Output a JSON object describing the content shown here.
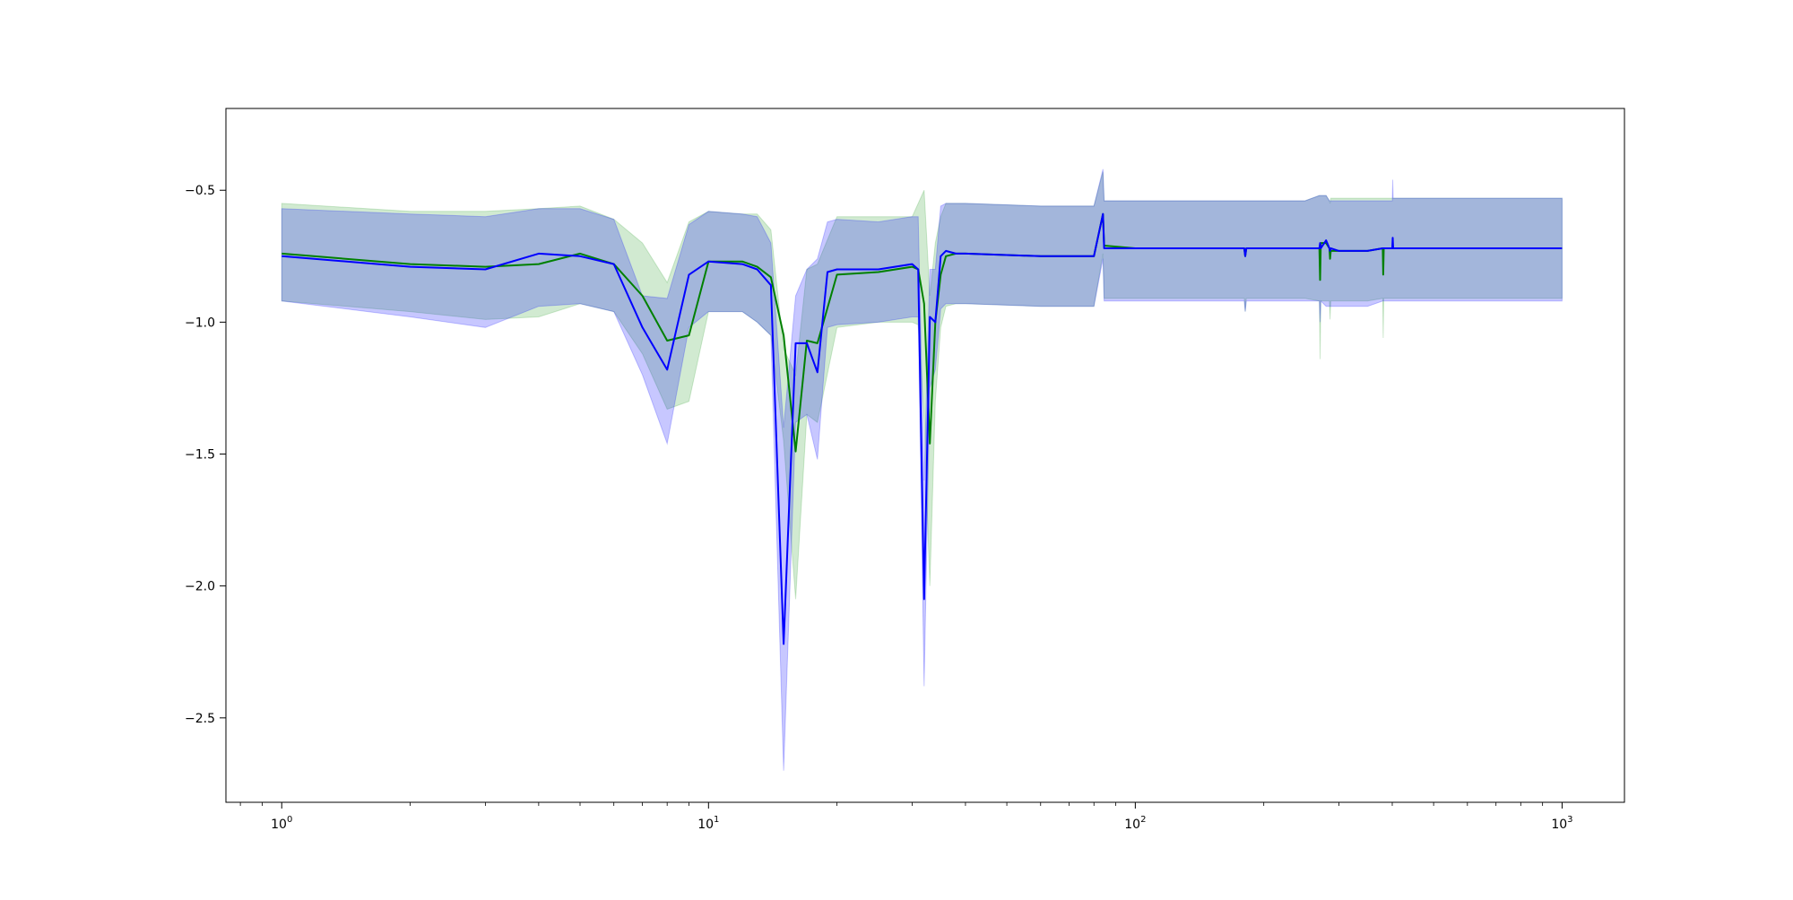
{
  "chart_data": {
    "type": "line",
    "title": "",
    "xlabel": "",
    "ylabel": "",
    "xscale": "log",
    "xlim": [
      0.74,
      1400
    ],
    "ylim": [
      -2.82,
      -0.19
    ],
    "grid": false,
    "x_ticks": [
      1,
      10,
      100,
      1000
    ],
    "x_tick_labels": [
      {
        "base": "10",
        "exp": "0"
      },
      {
        "base": "10",
        "exp": "1"
      },
      {
        "base": "10",
        "exp": "2"
      },
      {
        "base": "10",
        "exp": "3"
      }
    ],
    "y_ticks": [
      -0.5,
      -1.0,
      -1.5,
      -2.0,
      -2.5
    ],
    "y_tick_labels": [
      "−0.5",
      "−1.0",
      "−1.5",
      "−2.0",
      "−2.5"
    ],
    "series": [
      {
        "color": "#008000",
        "band_color": "#2ca02c",
        "x": [
          1,
          2,
          3,
          4,
          5,
          6,
          7,
          8,
          9,
          10,
          12,
          13,
          14,
          15,
          16,
          17,
          18,
          20,
          25,
          30,
          31,
          32,
          33,
          34,
          35,
          36,
          38,
          40,
          60,
          80,
          84,
          84.5,
          100,
          150,
          180,
          181,
          182,
          200,
          250,
          270,
          271,
          272,
          280,
          285,
          286,
          287,
          300,
          350,
          380,
          381,
          382,
          400,
          500,
          600,
          700,
          1000
        ],
        "y": [
          -0.74,
          -0.78,
          -0.79,
          -0.78,
          -0.74,
          -0.78,
          -0.9,
          -1.07,
          -1.05,
          -0.77,
          -0.77,
          -0.79,
          -0.83,
          -1.05,
          -1.49,
          -1.07,
          -1.08,
          -0.82,
          -0.81,
          -0.79,
          -0.8,
          -0.93,
          -1.46,
          -1.0,
          -0.82,
          -0.75,
          -0.74,
          -0.74,
          -0.75,
          -0.75,
          -0.59,
          -0.71,
          -0.72,
          -0.72,
          -0.72,
          -0.75,
          -0.72,
          -0.72,
          -0.72,
          -0.72,
          -0.84,
          -0.7,
          -0.7,
          -0.72,
          -0.76,
          -0.73,
          -0.73,
          -0.73,
          -0.72,
          -0.82,
          -0.72,
          -0.72,
          -0.72,
          -0.72,
          -0.72,
          -0.72
        ],
        "upper": [
          -0.55,
          -0.58,
          -0.58,
          -0.57,
          -0.56,
          -0.61,
          -0.7,
          -0.85,
          -0.62,
          -0.58,
          -0.59,
          -0.59,
          -0.65,
          -1.1,
          -1.2,
          -0.8,
          -0.78,
          -0.6,
          -0.6,
          -0.6,
          -0.55,
          -0.5,
          -0.9,
          -0.7,
          -0.6,
          -0.55,
          -0.55,
          -0.55,
          -0.56,
          -0.56,
          -0.43,
          -0.54,
          -0.54,
          -0.54,
          -0.54,
          -0.54,
          -0.54,
          -0.54,
          -0.54,
          -0.52,
          -0.52,
          -0.52,
          -0.52,
          -0.54,
          -0.55,
          -0.53,
          -0.53,
          -0.53,
          -0.53,
          -0.53,
          -0.53,
          -0.53,
          -0.53,
          -0.53,
          -0.53,
          -0.53
        ],
        "lower": [
          -0.92,
          -0.96,
          -0.99,
          -0.98,
          -0.93,
          -0.96,
          -1.12,
          -1.33,
          -1.3,
          -0.96,
          -0.96,
          -1.0,
          -1.05,
          -1.45,
          -2.05,
          -1.35,
          -1.38,
          -1.02,
          -1.0,
          -1.0,
          -1.01,
          -1.37,
          -2.0,
          -1.3,
          -1.02,
          -0.94,
          -0.93,
          -0.93,
          -0.94,
          -0.94,
          -0.74,
          -0.91,
          -0.91,
          -0.91,
          -0.91,
          -0.96,
          -0.91,
          -0.91,
          -0.91,
          -0.92,
          -1.14,
          -0.92,
          -0.92,
          -0.92,
          -0.99,
          -0.92,
          -0.92,
          -0.92,
          -0.91,
          -1.06,
          -0.91,
          -0.91,
          -0.91,
          -0.91,
          -0.91,
          -0.91
        ]
      },
      {
        "color": "#0000ff",
        "band_color": "#0000ff",
        "x": [
          1,
          2,
          3,
          4,
          5,
          6,
          7,
          8,
          9,
          10,
          12,
          13,
          14,
          15,
          16,
          17,
          18,
          19,
          20,
          25,
          30,
          31,
          32,
          33,
          34,
          35,
          36,
          38,
          40,
          60,
          80,
          84,
          84.5,
          100,
          150,
          180,
          181,
          182,
          200,
          250,
          270,
          271,
          272,
          280,
          285,
          286,
          287,
          300,
          350,
          380,
          400,
          401,
          402,
          500,
          600,
          1000
        ],
        "y": [
          -0.75,
          -0.79,
          -0.8,
          -0.74,
          -0.75,
          -0.78,
          -1.02,
          -1.18,
          -0.82,
          -0.77,
          -0.78,
          -0.8,
          -0.86,
          -2.22,
          -1.08,
          -1.08,
          -1.19,
          -0.81,
          -0.8,
          -0.8,
          -0.78,
          -0.8,
          -2.05,
          -0.98,
          -1.0,
          -0.75,
          -0.73,
          -0.74,
          -0.74,
          -0.75,
          -0.75,
          -0.59,
          -0.72,
          -0.72,
          -0.72,
          -0.72,
          -0.75,
          -0.72,
          -0.72,
          -0.72,
          -0.72,
          -0.7,
          -0.72,
          -0.69,
          -0.72,
          -0.73,
          -0.72,
          -0.73,
          -0.73,
          -0.72,
          -0.72,
          -0.68,
          -0.72,
          -0.72,
          -0.72,
          -0.72
        ],
        "upper": [
          -0.57,
          -0.59,
          -0.6,
          -0.57,
          -0.57,
          -0.61,
          -0.9,
          -0.91,
          -0.63,
          -0.58,
          -0.59,
          -0.6,
          -0.7,
          -1.4,
          -0.9,
          -0.8,
          -0.76,
          -0.62,
          -0.61,
          -0.62,
          -0.6,
          -0.6,
          -1.6,
          -0.8,
          -0.8,
          -0.56,
          -0.55,
          -0.55,
          -0.55,
          -0.56,
          -0.56,
          -0.42,
          -0.54,
          -0.54,
          -0.54,
          -0.54,
          -0.54,
          -0.54,
          -0.54,
          -0.54,
          -0.52,
          -0.52,
          -0.52,
          -0.52,
          -0.54,
          -0.54,
          -0.54,
          -0.54,
          -0.54,
          -0.54,
          -0.54,
          -0.46,
          -0.53,
          -0.53,
          -0.53,
          -0.53
        ],
        "lower": [
          -0.92,
          -0.98,
          -1.02,
          -0.94,
          -0.93,
          -0.96,
          -1.2,
          -1.46,
          -1.02,
          -0.96,
          -0.96,
          -1.0,
          -1.05,
          -2.7,
          -1.38,
          -1.35,
          -1.52,
          -1.02,
          -1.01,
          -1.0,
          -0.98,
          -0.98,
          -2.38,
          -1.25,
          -1.18,
          -0.95,
          -0.93,
          -0.93,
          -0.93,
          -0.94,
          -0.94,
          -0.76,
          -0.92,
          -0.92,
          -0.92,
          -0.92,
          -0.96,
          -0.92,
          -0.92,
          -0.92,
          -0.92,
          -1.0,
          -0.92,
          -0.94,
          -0.94,
          -0.94,
          -0.94,
          -0.94,
          -0.94,
          -0.92,
          -0.92,
          -0.92,
          -0.92,
          -0.92,
          -0.92,
          -0.92
        ]
      }
    ]
  }
}
